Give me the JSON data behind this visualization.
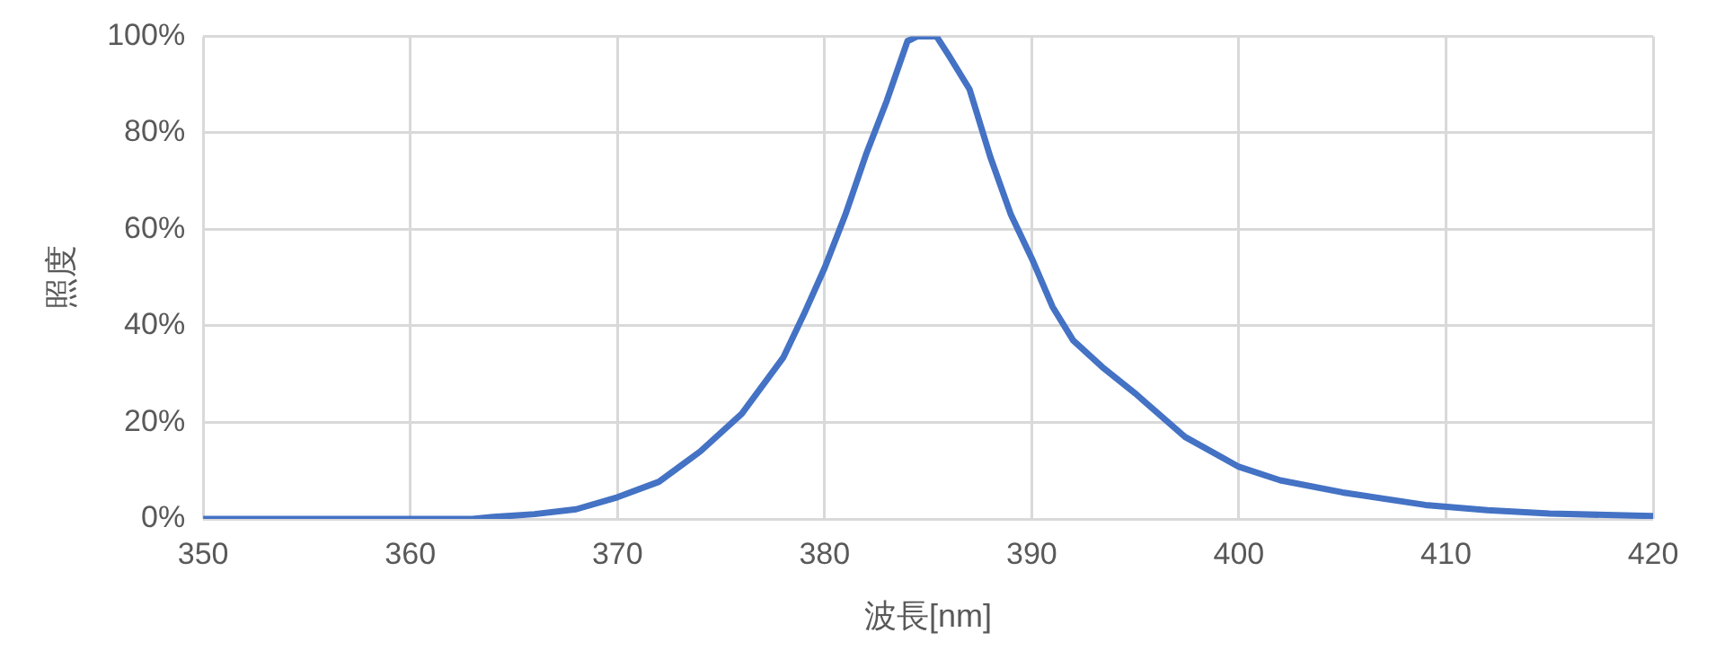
{
  "chart_data": {
    "type": "line",
    "xlabel": "波長[nm]",
    "ylabel": "照度",
    "x": [
      350,
      355,
      360,
      363,
      364,
      366,
      368,
      370,
      372,
      374,
      376,
      378,
      379,
      380,
      381,
      382,
      383,
      384,
      384.5,
      385.4,
      386,
      387,
      388,
      389,
      390,
      391,
      392,
      393.4,
      395,
      397.4,
      400,
      402,
      405,
      409,
      412,
      415,
      420
    ],
    "series": [
      {
        "color": "#4472c4",
        "values": [
          0,
          0,
          0,
          0,
          0.4,
          1,
          2,
          4.5,
          7.7,
          14,
          21.8,
          33.4,
          42.4,
          52,
          63,
          75.5,
          86.6,
          99,
          100,
          100,
          96,
          89,
          75,
          63,
          54,
          44,
          37,
          31.5,
          26,
          17,
          10.8,
          8,
          5.5,
          2.9,
          1.8,
          1.1,
          0.6
        ]
      }
    ],
    "xlim": [
      350,
      420
    ],
    "xticks": [
      350,
      360,
      370,
      380,
      390,
      400,
      410,
      420
    ],
    "ylim": [
      0,
      100
    ],
    "yticks": [
      {
        "value": 0,
        "label": "0%"
      },
      {
        "value": 20,
        "label": "20%"
      },
      {
        "value": 40,
        "label": "40%"
      },
      {
        "value": 60,
        "label": "60%"
      },
      {
        "value": 80,
        "label": "80%"
      },
      {
        "value": 100,
        "label": "100%"
      }
    ],
    "grid": true,
    "legend": false,
    "marker": "none",
    "line_style": "solid"
  }
}
